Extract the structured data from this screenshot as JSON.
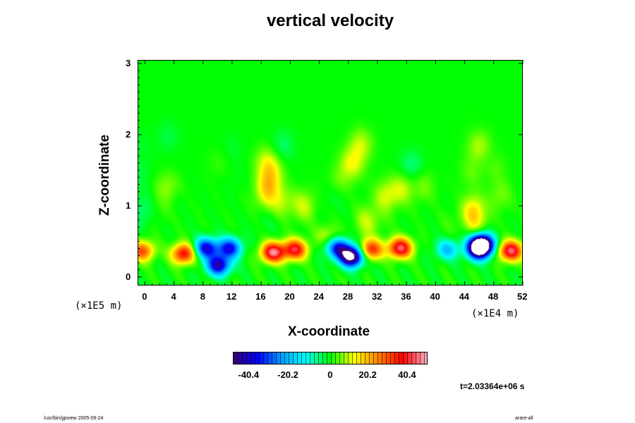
{
  "chart_data": {
    "type": "heatmap",
    "title": "vertical velocity",
    "xlabel": "X-coordinate",
    "ylabel": "Z-coordinate",
    "x_ticks": [
      "0",
      "4",
      "8",
      "12",
      "16",
      "20",
      "24",
      "28",
      "32",
      "36",
      "40",
      "44",
      "48",
      "52"
    ],
    "y_ticks": [
      "0",
      "1",
      "2",
      "3"
    ],
    "x_unit": "(×1E4 m)",
    "y_unit": "(×1E5 m)",
    "xlim": [
      -1,
      52
    ],
    "ylim": [
      -0.12,
      3.05
    ],
    "colorbar": {
      "range": [
        -50,
        50
      ],
      "ticks": [
        "-40.4",
        "-20.2",
        "0",
        "20.2",
        "40.4"
      ],
      "colormap": [
        "#3a006f",
        "#0000ff",
        "#00a0ff",
        "#00ffff",
        "#00ff00",
        "#ffff00",
        "#ff8000",
        "#ff0000",
        "#ffb0c0"
      ]
    },
    "features": [
      {
        "x": -0.5,
        "z": 0.38,
        "value": 30
      },
      {
        "x": 5.2,
        "z": 0.34,
        "value": 38
      },
      {
        "x": 8.3,
        "z": 0.42,
        "value": -40
      },
      {
        "x": 11.5,
        "z": 0.42,
        "value": -38
      },
      {
        "x": 10.0,
        "z": 0.18,
        "value": -44
      },
      {
        "x": 17.5,
        "z": 0.36,
        "value": 46
      },
      {
        "x": 20.5,
        "z": 0.4,
        "value": 40
      },
      {
        "x": 26.5,
        "z": 0.42,
        "value": -36
      },
      {
        "x": 28.3,
        "z": 0.3,
        "value": -60
      },
      {
        "x": 31.0,
        "z": 0.4,
        "value": 34
      },
      {
        "x": 35.0,
        "z": 0.42,
        "value": 44
      },
      {
        "x": 41.5,
        "z": 0.4,
        "value": -20
      },
      {
        "x": 45.8,
        "z": 0.4,
        "value": -50
      },
      {
        "x": 46.2,
        "z": 0.48,
        "value": -60
      },
      {
        "x": 50.2,
        "z": 0.38,
        "value": 44
      },
      {
        "x": 3.0,
        "z": 1.25,
        "value": 10
      },
      {
        "x": 17.0,
        "z": 1.3,
        "value": 9
      },
      {
        "x": 33.0,
        "z": 1.15,
        "value": 10
      },
      {
        "x": 45.0,
        "z": 0.95,
        "value": 14
      }
    ]
  },
  "time_label": "t=2.03364e+06 s",
  "footer_left": "/usr/bin/gpview 2005-09-24",
  "footer_right": "arare-all"
}
